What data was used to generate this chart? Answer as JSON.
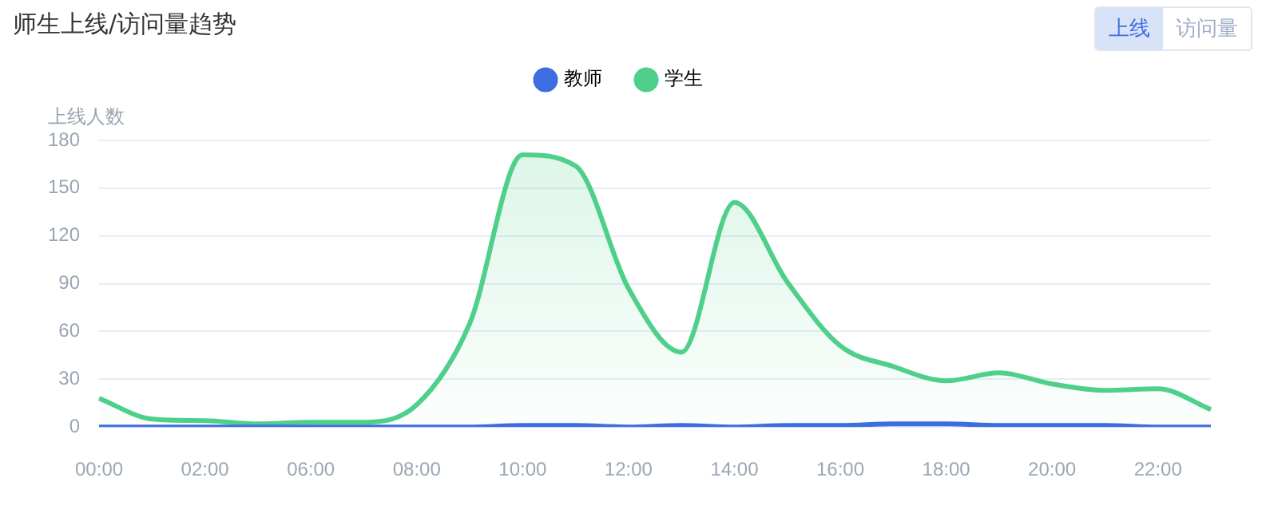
{
  "chart_data": {
    "type": "line",
    "title": "师生上线/访问量趋势",
    "ylabel": "上线人数",
    "annotations": [
      "上线",
      "访问量"
    ],
    "categories": [
      "00:00",
      null,
      "02:00",
      null,
      "06:00",
      null,
      "08:00",
      null,
      "10:00",
      null,
      "12:00",
      null,
      "14:00",
      null,
      "16:00",
      null,
      "18:00",
      null,
      "20:00",
      null,
      "22:00",
      null
    ],
    "series": [
      {
        "name": "教师",
        "color": "#3d6ee0",
        "type": "line",
        "values": [
          0,
          0,
          0,
          0,
          0,
          0,
          0,
          0,
          1,
          1,
          0,
          1,
          0,
          1,
          1,
          2,
          2,
          1,
          1,
          1,
          0,
          0
        ]
      },
      {
        "name": "学生",
        "color": "#4fd08a",
        "type": "area",
        "values": [
          18,
          5,
          4,
          2,
          3,
          3,
          14,
          65,
          171,
          164,
          87,
          47,
          141,
          91,
          51,
          38,
          29,
          34,
          27,
          23,
          24,
          11
        ]
      }
    ],
    "ylim": [
      0,
      180
    ],
    "yticks": [
      0,
      30,
      60,
      90,
      120,
      150,
      180
    ],
    "grid": "y",
    "legend": "top",
    "marker": "none",
    "line_style": "solid"
  }
}
